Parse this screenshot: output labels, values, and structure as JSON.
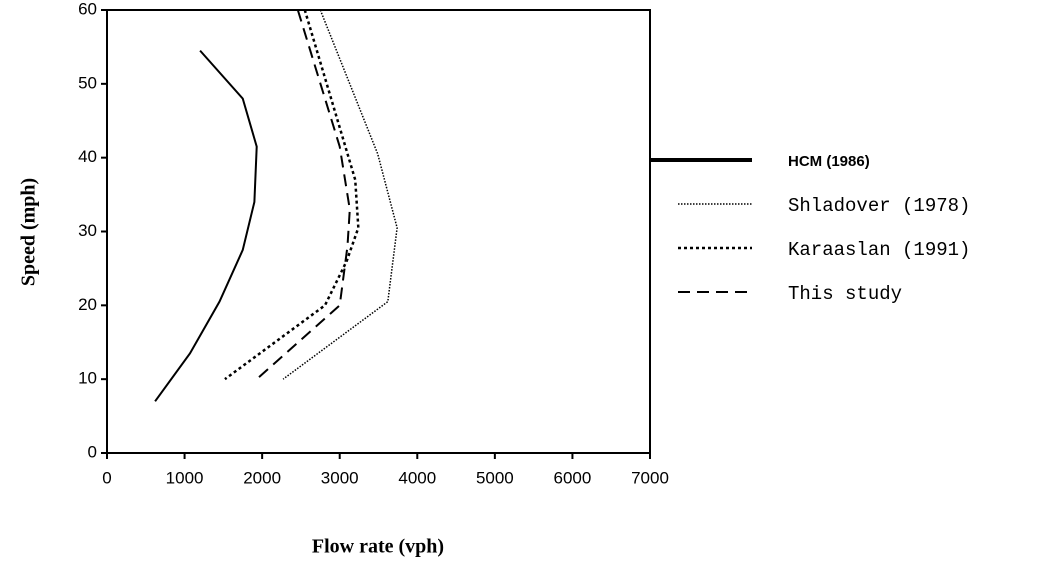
{
  "chart_data": {
    "type": "line",
    "xlabel": "Flow rate (vph)",
    "ylabel": "Speed (mph)",
    "xlim": [
      0,
      7000
    ],
    "xticks": [
      0,
      1000,
      2000,
      3000,
      4000,
      5000,
      6000,
      7000
    ],
    "ylim": [
      0,
      60
    ],
    "yticks": [
      0,
      10,
      20,
      30,
      40,
      50,
      60
    ],
    "series": [
      {
        "name": "HCM (1986)",
        "color": "#000000",
        "style": "solid",
        "x": [
          1200,
          1750,
          1930,
          1900,
          1750,
          1450,
          1070,
          620
        ],
        "values": [
          54.5,
          48,
          41.5,
          34,
          27.5,
          20.5,
          13.5,
          7
        ]
      },
      {
        "name": "Shladover (1978)",
        "color": "#000000",
        "style": "fine-dotted",
        "x": [
          2750,
          3490,
          3740,
          3620,
          2270
        ],
        "values": [
          60,
          40.5,
          30.5,
          20.5,
          10
        ]
      },
      {
        "name": "Karaaslan (1991)",
        "color": "#000000",
        "style": "dotted",
        "x": [
          2550,
          3200,
          3240,
          3090,
          2810,
          1520
        ],
        "values": [
          60,
          37,
          30.5,
          26,
          20,
          10
        ]
      },
      {
        "name": "This study",
        "color": "#000000",
        "style": "dashed",
        "x": [
          2460,
          3000,
          3130,
          3100,
          3000,
          1930
        ],
        "values": [
          60,
          41.5,
          33,
          28,
          20,
          10
        ]
      }
    ]
  }
}
